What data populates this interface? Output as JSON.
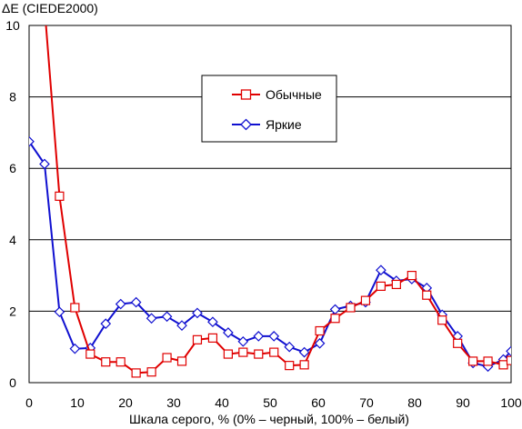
{
  "chart_data": {
    "type": "line",
    "title": "",
    "ylabel": "ΔE (CIEDE2000)",
    "xlabel": "Шкала серого, % (0% – черный, 100% – белый)",
    "xlim": [
      0,
      100
    ],
    "ylim": [
      0,
      10
    ],
    "xticks": [
      0,
      10,
      20,
      30,
      40,
      50,
      60,
      70,
      80,
      90,
      100
    ],
    "yticks": [
      0,
      2,
      4,
      6,
      8,
      10
    ],
    "grid": "horizontal",
    "legend_position": "inside-top-center",
    "series": [
      {
        "name": "Обычные",
        "color": "#e00000",
        "marker": "square",
        "x": [
          3.2,
          6.3,
          9.5,
          12.7,
          15.9,
          19.0,
          22.2,
          25.4,
          28.6,
          31.7,
          34.9,
          38.1,
          41.3,
          44.4,
          47.6,
          50.8,
          54.0,
          57.1,
          60.3,
          63.5,
          66.7,
          69.8,
          73.0,
          76.2,
          79.4,
          82.5,
          85.7,
          88.9,
          92.1,
          95.2,
          98.4,
          100
        ],
        "y": [
          10.5,
          5.22,
          2.1,
          0.8,
          0.58,
          0.58,
          0.27,
          0.3,
          0.7,
          0.6,
          1.2,
          1.25,
          0.8,
          0.85,
          0.8,
          0.85,
          0.48,
          0.5,
          1.45,
          1.8,
          2.1,
          2.3,
          2.7,
          2.75,
          3.0,
          2.45,
          1.75,
          1.1,
          0.6,
          0.6,
          0.5,
          0.62
        ]
      },
      {
        "name": "Яркие",
        "color": "#1010d0",
        "marker": "diamond",
        "x": [
          0,
          3.2,
          6.3,
          9.5,
          12.7,
          15.9,
          19.0,
          22.2,
          25.4,
          28.6,
          31.7,
          34.9,
          38.1,
          41.3,
          44.4,
          47.6,
          50.8,
          54.0,
          57.1,
          60.3,
          63.5,
          66.7,
          69.8,
          73.0,
          76.2,
          79.4,
          82.5,
          85.7,
          88.9,
          92.1,
          95.2,
          98.4,
          100
        ],
        "y": [
          6.75,
          6.12,
          1.98,
          0.95,
          0.97,
          1.65,
          2.2,
          2.25,
          1.8,
          1.85,
          1.6,
          1.95,
          1.7,
          1.4,
          1.15,
          1.3,
          1.3,
          1.0,
          0.85,
          1.1,
          2.05,
          2.15,
          2.25,
          3.15,
          2.85,
          2.9,
          2.65,
          1.9,
          1.3,
          0.55,
          0.45,
          0.65,
          0.88
        ]
      }
    ]
  }
}
